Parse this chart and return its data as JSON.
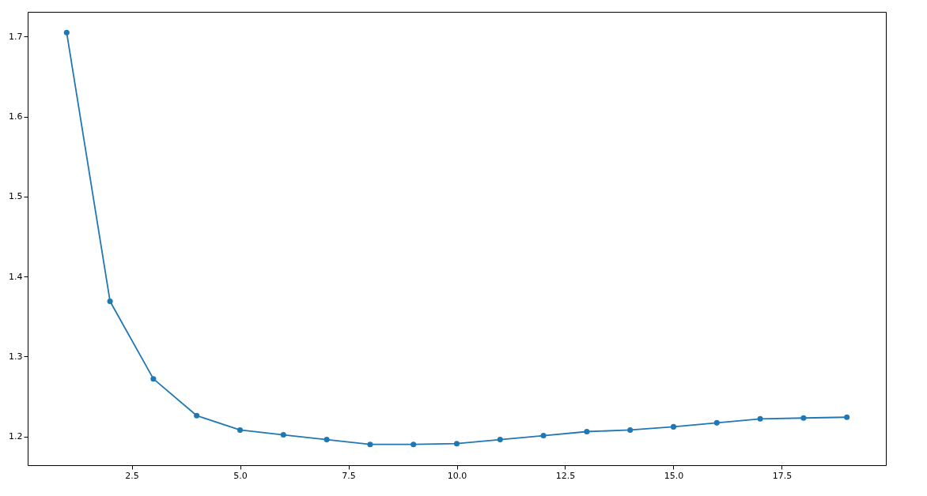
{
  "chart_data": {
    "type": "line",
    "x": [
      1,
      2,
      3,
      4,
      5,
      6,
      7,
      8,
      9,
      10,
      11,
      12,
      13,
      14,
      15,
      16,
      17,
      18,
      19
    ],
    "series": [
      {
        "color": "#1f77b4",
        "values": [
          1.705,
          1.369,
          1.272,
          1.226,
          1.208,
          1.202,
          1.196,
          1.19,
          1.19,
          1.191,
          1.196,
          1.201,
          1.206,
          1.208,
          1.212,
          1.217,
          1.222,
          1.223,
          1.224
        ]
      }
    ],
    "xlim": [
      0.1,
      19.9
    ],
    "ylim": [
      1.164,
      1.731
    ],
    "xticks": [
      {
        "value": 2.5,
        "label": "2.5"
      },
      {
        "value": 5,
        "label": "5.0"
      },
      {
        "value": 7.5,
        "label": "7.5"
      },
      {
        "value": 10,
        "label": "10.0"
      },
      {
        "value": 12.5,
        "label": "12.5"
      },
      {
        "value": 15,
        "label": "15.0"
      },
      {
        "value": 17.5,
        "label": "17.5"
      }
    ],
    "yticks": [
      1.2,
      1.3,
      1.4,
      1.5,
      1.6,
      1.7
    ],
    "grid": false,
    "marker": "circle",
    "line_style": "solid"
  }
}
